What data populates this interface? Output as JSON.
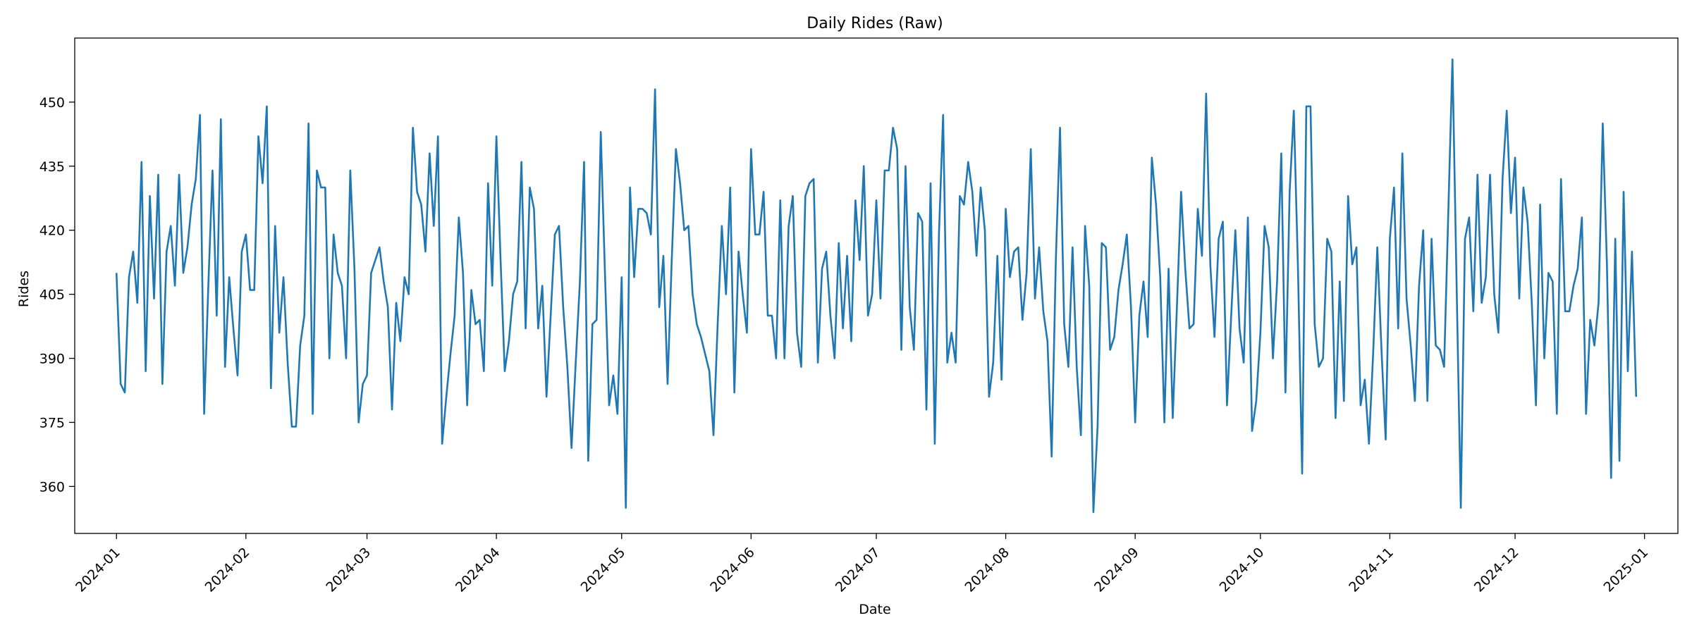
{
  "chart_data": {
    "type": "line",
    "title": "Daily Rides (Raw)",
    "xlabel": "Date",
    "ylabel": "Rides",
    "x_range": [
      "2023-12-22",
      "2025-01-09"
    ],
    "ylim": [
      349,
      465
    ],
    "x_ticks": [
      "2024-01",
      "2024-02",
      "2024-03",
      "2024-04",
      "2024-05",
      "2024-06",
      "2024-07",
      "2024-08",
      "2024-09",
      "2024-10",
      "2024-11",
      "2024-12",
      "2025-01"
    ],
    "y_ticks": [
      360,
      375,
      390,
      405,
      420,
      435,
      450
    ],
    "grid": false,
    "legend": "none",
    "series": [
      {
        "color": "#1f77b4",
        "start_date": "2024-01-01",
        "step_days": 1,
        "values": [
          410,
          384,
          382,
          409,
          415,
          403,
          436,
          387,
          428,
          404,
          433,
          384,
          415,
          421,
          407,
          433,
          410,
          416,
          426,
          432,
          447,
          377,
          407,
          434,
          400,
          446,
          388,
          409,
          397,
          386,
          415,
          419,
          406,
          406,
          442,
          431,
          449,
          383,
          421,
          396,
          409,
          389,
          374,
          374,
          393,
          400,
          445,
          377,
          434,
          430,
          430,
          390,
          419,
          410,
          407,
          390,
          434,
          411,
          375,
          384,
          386,
          410,
          413,
          416,
          408,
          402,
          378,
          403,
          394,
          409,
          405,
          444,
          429,
          426,
          415,
          438,
          421,
          442,
          370,
          381,
          391,
          400,
          423,
          410,
          379,
          406,
          398,
          399,
          387,
          431,
          407,
          442,
          413,
          387,
          394,
          405,
          408,
          436,
          397,
          430,
          425,
          397,
          407,
          381,
          400,
          419,
          421,
          402,
          388,
          369,
          389,
          408,
          436,
          366,
          398,
          399,
          443,
          410,
          379,
          386,
          377,
          409,
          355,
          430,
          409,
          425,
          425,
          424,
          419,
          453,
          402,
          414,
          384,
          413,
          439,
          431,
          420,
          421,
          405,
          398,
          395,
          391,
          387,
          372,
          398,
          421,
          405,
          430,
          382,
          415,
          405,
          396,
          439,
          419,
          419,
          429,
          400,
          400,
          390,
          427,
          390,
          421,
          428,
          396,
          388,
          428,
          431,
          432,
          389,
          411,
          415,
          400,
          390,
          417,
          397,
          414,
          394,
          427,
          413,
          435,
          400,
          405,
          427,
          404,
          434,
          434,
          444,
          439,
          392,
          435,
          402,
          392,
          424,
          422,
          378,
          431,
          370,
          419,
          447,
          389,
          396,
          389,
          428,
          426,
          436,
          429,
          414,
          430,
          420,
          381,
          389,
          414,
          385,
          425,
          409,
          415,
          416,
          399,
          410,
          439,
          404,
          416,
          401,
          394,
          367,
          413,
          444,
          398,
          388,
          416,
          388,
          372,
          421,
          407,
          354,
          374,
          417,
          416,
          392,
          395,
          406,
          412,
          419,
          402,
          375,
          400,
          408,
          395,
          437,
          426,
          409,
          375,
          411,
          376,
          402,
          429,
          411,
          397,
          398,
          425,
          414,
          452,
          412,
          395,
          418,
          422,
          379,
          400,
          420,
          397,
          389,
          423,
          373,
          380,
          396,
          421,
          416,
          390,
          408,
          438,
          382,
          429,
          448,
          411,
          363,
          449,
          449,
          398,
          388,
          390,
          418,
          415,
          376,
          408,
          380,
          428,
          412,
          416,
          379,
          385,
          370,
          391,
          416,
          392,
          371,
          418,
          430,
          397,
          438,
          404,
          393,
          380,
          407,
          420,
          380,
          418,
          393,
          392,
          388,
          424,
          460,
          407,
          355,
          418,
          423,
          401,
          433,
          403,
          409,
          433,
          405,
          396,
          432,
          448,
          424,
          437,
          404,
          430,
          422,
          403,
          379,
          426,
          390,
          410,
          408,
          377,
          432,
          401,
          401,
          407,
          411,
          423,
          377,
          399,
          393,
          403,
          445,
          412,
          362,
          418,
          366,
          429,
          387,
          415,
          381
        ]
      }
    ]
  }
}
